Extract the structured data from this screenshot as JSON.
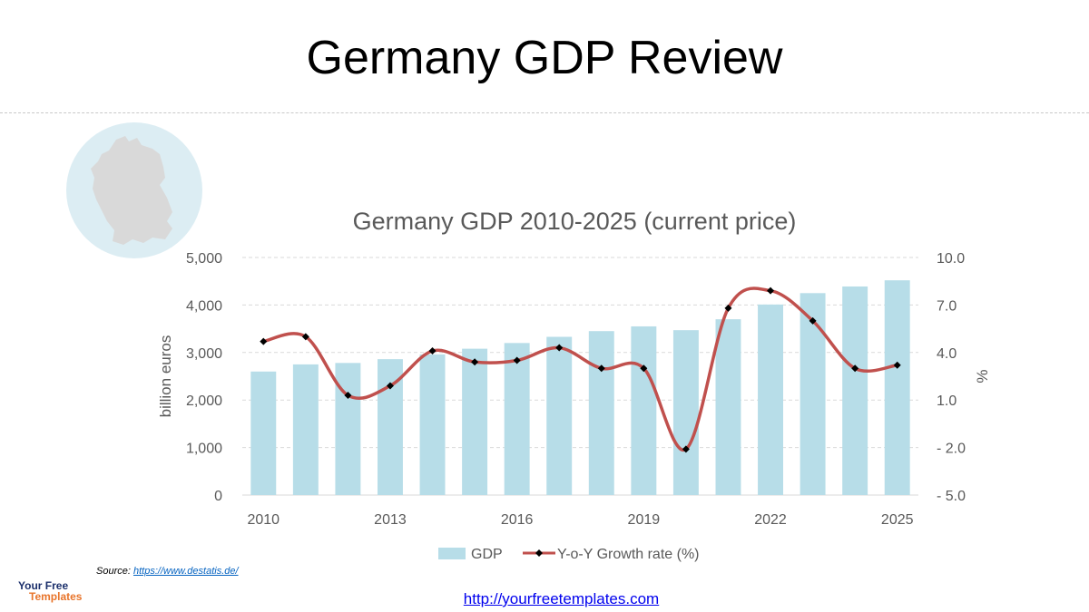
{
  "slide": {
    "title": "Germany GDP Review",
    "source_label": "Source:",
    "source_link": "https://www.destatis.de/",
    "footer_link": "http://yourfreetemplates.com",
    "logo_line1": "Your Free",
    "logo_line2": "Templates"
  },
  "chart_data": {
    "type": "bar",
    "title": "Germany GDP 2010-2025 (current price)",
    "ylabel": "billion euros",
    "y2label": "%",
    "x": [
      2010,
      2011,
      2012,
      2013,
      2014,
      2015,
      2016,
      2017,
      2018,
      2019,
      2020,
      2021,
      2022,
      2023,
      2024,
      2025
    ],
    "x_tick_labels": [
      "2010",
      "2013",
      "2016",
      "2019",
      "2022",
      "2025"
    ],
    "ylim": [
      0,
      5000
    ],
    "y_ticks": [
      "0",
      "1,000",
      "2,000",
      "3,000",
      "4,000",
      "5,000"
    ],
    "y2lim": [
      -5,
      10
    ],
    "y2_ticks": [
      "- 5.0",
      "- 2.0",
      "1.0",
      "4.0",
      "7.0",
      "10.0"
    ],
    "grid": true,
    "legend_position": "bottom",
    "series": [
      {
        "name": "GDP",
        "type": "bar",
        "axis": "left",
        "color": "#b7dde8",
        "values": [
          2600,
          2750,
          2780,
          2860,
          2960,
          3080,
          3200,
          3330,
          3450,
          3550,
          3470,
          3700,
          4010,
          4250,
          4390,
          4520
        ]
      },
      {
        "name": "Y-o-Y Growth rate (%)",
        "type": "line",
        "axis": "right",
        "color": "#c0504d",
        "marker_color": "#000000",
        "values": [
          4.7,
          5.0,
          1.3,
          1.9,
          4.1,
          3.4,
          3.5,
          4.3,
          3.0,
          3.0,
          -2.1,
          6.8,
          7.9,
          6.0,
          3.0,
          3.2
        ]
      }
    ]
  },
  "map": {
    "icon": "germany-map-icon",
    "circle_color": "#dcedf3",
    "country_color": "#d9d9d9"
  }
}
